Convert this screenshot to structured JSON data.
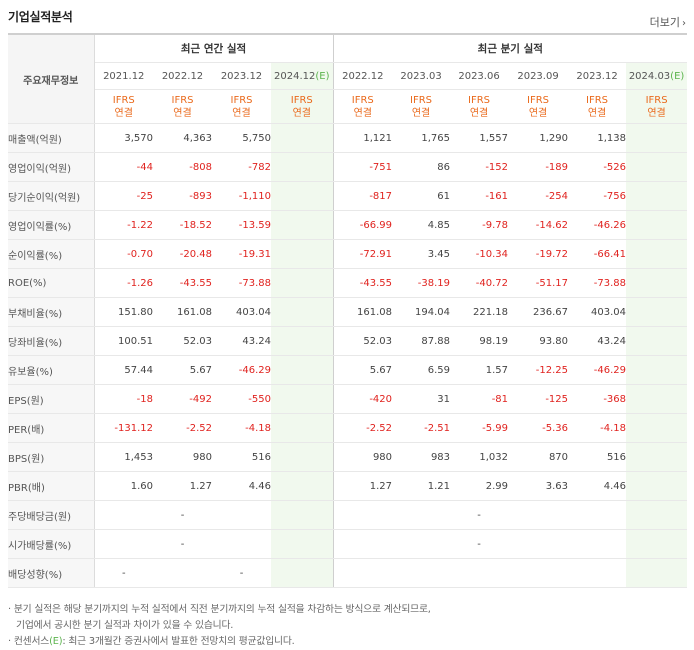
{
  "title": "기업실적분석",
  "more_label": "더보기",
  "header": {
    "row_label": "주요재무정보",
    "annual_group": "최근 연간 실적",
    "quarter_group": "최근 분기 실적",
    "annual_periods": [
      {
        "label": "2021.12",
        "estimate": false
      },
      {
        "label": "2022.12",
        "estimate": false
      },
      {
        "label": "2023.12",
        "estimate": false
      },
      {
        "label": "2024.12",
        "estimate": true
      }
    ],
    "quarter_periods": [
      {
        "label": "2022.12",
        "estimate": false
      },
      {
        "label": "2023.03",
        "estimate": false
      },
      {
        "label": "2023.06",
        "estimate": false
      },
      {
        "label": "2023.09",
        "estimate": false
      },
      {
        "label": "2023.12",
        "estimate": false
      },
      {
        "label": "2024.03",
        "estimate": true
      }
    ],
    "estimate_mark": "(E)",
    "ifrs_line1": "IFRS",
    "ifrs_line2": "연결"
  },
  "rows": [
    {
      "label": "매출액(억원)",
      "annual": [
        "3,570",
        "4,363",
        "5,750",
        ""
      ],
      "quarter": [
        "1,121",
        "1,765",
        "1,557",
        "1,290",
        "1,138",
        ""
      ],
      "group_start": true
    },
    {
      "label": "영업이익(억원)",
      "annual": [
        "-44",
        "-808",
        "-782",
        ""
      ],
      "quarter": [
        "-751",
        "86",
        "-152",
        "-189",
        "-526",
        ""
      ]
    },
    {
      "label": "당기순이익(억원)",
      "annual": [
        "-25",
        "-893",
        "-1,110",
        ""
      ],
      "quarter": [
        "-817",
        "61",
        "-161",
        "-254",
        "-756",
        ""
      ]
    },
    {
      "label": "영업이익률(%)",
      "annual": [
        "-1.22",
        "-18.52",
        "-13.59",
        ""
      ],
      "quarter": [
        "-66.99",
        "4.85",
        "-9.78",
        "-14.62",
        "-46.26",
        ""
      ],
      "group_start": true
    },
    {
      "label": "순이익률(%)",
      "annual": [
        "-0.70",
        "-20.48",
        "-19.31",
        ""
      ],
      "quarter": [
        "-72.91",
        "3.45",
        "-10.34",
        "-19.72",
        "-66.41",
        ""
      ]
    },
    {
      "label": "ROE(%)",
      "annual": [
        "-1.26",
        "-43.55",
        "-73.88",
        ""
      ],
      "quarter": [
        "-43.55",
        "-38.19",
        "-40.72",
        "-51.17",
        "-73.88",
        ""
      ]
    },
    {
      "label": "부채비율(%)",
      "annual": [
        "151.80",
        "161.08",
        "403.04",
        ""
      ],
      "quarter": [
        "161.08",
        "194.04",
        "221.18",
        "236.67",
        "403.04",
        ""
      ],
      "group_start": true
    },
    {
      "label": "당좌비율(%)",
      "annual": [
        "100.51",
        "52.03",
        "43.24",
        ""
      ],
      "quarter": [
        "52.03",
        "87.88",
        "98.19",
        "93.80",
        "43.24",
        ""
      ]
    },
    {
      "label": "유보율(%)",
      "annual": [
        "57.44",
        "5.67",
        "-46.29",
        ""
      ],
      "quarter": [
        "5.67",
        "6.59",
        "1.57",
        "-12.25",
        "-46.29",
        ""
      ]
    },
    {
      "label": "EPS(원)",
      "annual": [
        "-18",
        "-492",
        "-550",
        ""
      ],
      "quarter": [
        "-420",
        "31",
        "-81",
        "-125",
        "-368",
        ""
      ],
      "group_start": true
    },
    {
      "label": "PER(배)",
      "annual": [
        "-131.12",
        "-2.52",
        "-4.18",
        ""
      ],
      "quarter": [
        "-2.52",
        "-2.51",
        "-5.99",
        "-5.36",
        "-4.18",
        ""
      ]
    },
    {
      "label": "BPS(원)",
      "annual": [
        "1,453",
        "980",
        "516",
        ""
      ],
      "quarter": [
        "980",
        "983",
        "1,032",
        "870",
        "516",
        ""
      ]
    },
    {
      "label": "PBR(배)",
      "annual": [
        "1.60",
        "1.27",
        "4.46",
        ""
      ],
      "quarter": [
        "1.27",
        "1.21",
        "2.99",
        "3.63",
        "4.46",
        ""
      ]
    },
    {
      "label": "주당배당금(원)",
      "annual": [
        "",
        "-",
        "",
        ""
      ],
      "quarter": [
        "",
        "",
        "-",
        "",
        "",
        ""
      ],
      "group_start": true
    },
    {
      "label": "시가배당률(%)",
      "annual": [
        "",
        "-",
        "",
        ""
      ],
      "quarter": [
        "",
        "",
        "-",
        "",
        "",
        ""
      ]
    },
    {
      "label": "배당성향(%)",
      "annual": [
        "-",
        "",
        "-",
        ""
      ],
      "quarter": [
        "",
        "",
        "",
        "",
        "",
        ""
      ]
    }
  ],
  "notes": {
    "line1": "분기 실적은 해당 분기까지의 누적 실적에서 직전 분기까지의 누적 실적을 차감하는 방식으로 계산되므로,",
    "line2": "기업에서 공시한 분기 실적과 차이가 있을 수 있습니다.",
    "line3_pre": "컨센서스",
    "line3_post": ": 최근 3개월간 증권사에서 발표한 전망치의 평균값입니다."
  },
  "colors": {
    "negative": "#e0231f",
    "ifrs": "#ea6a1c",
    "estimate_bg": "#f1f9ee",
    "estimate_mark": "#5bb44d"
  }
}
